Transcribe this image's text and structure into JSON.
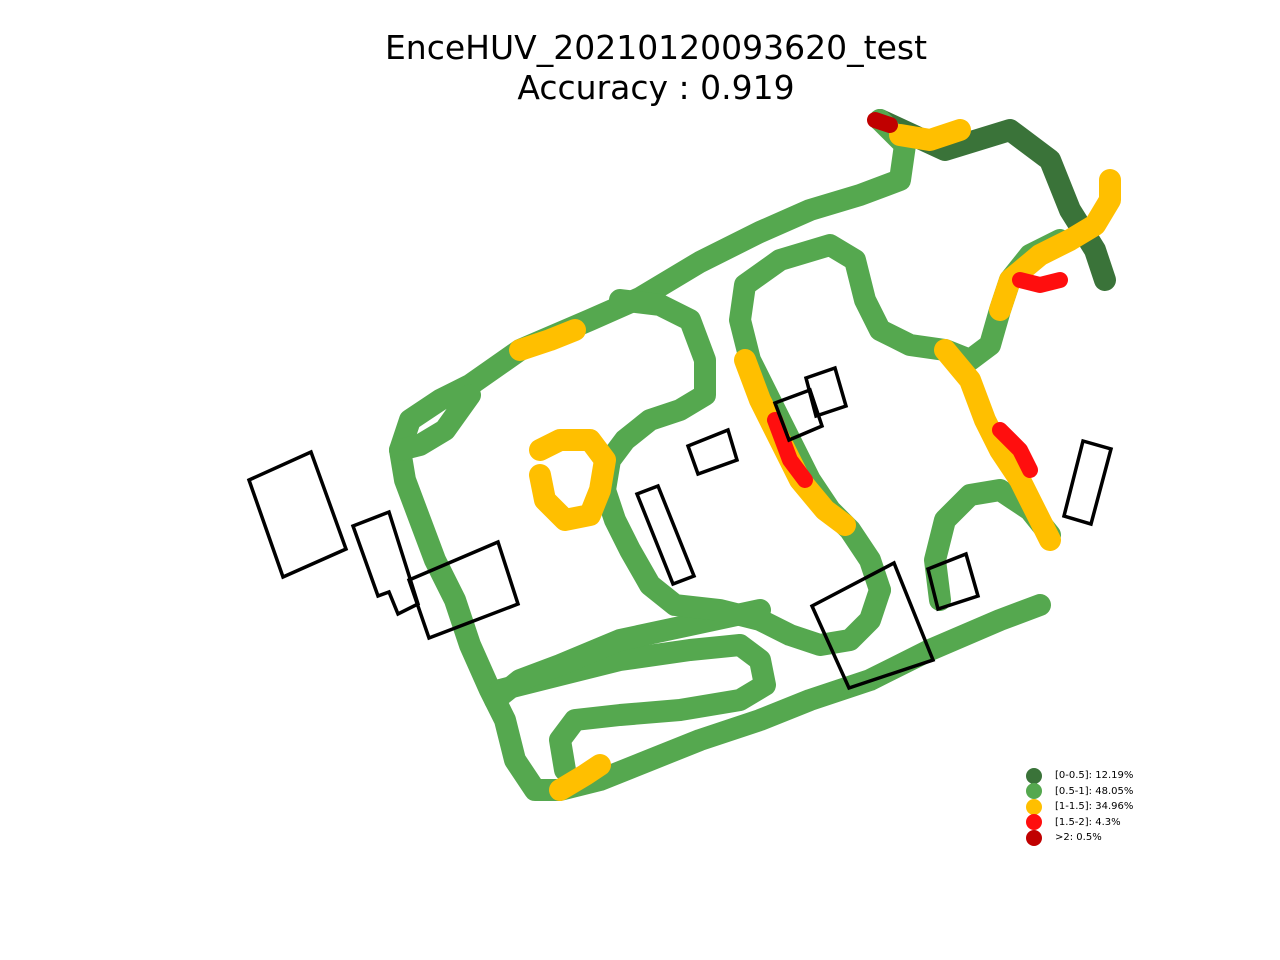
{
  "header": {
    "title": "EnceHUV_20210120093620_test",
    "subtitle": "Accuracy : 0.919"
  },
  "chart_data": {
    "type": "scatter",
    "title": "EnceHUV_20210120093620_test",
    "subtitle": "Accuracy : 0.919",
    "xlabel": "",
    "ylabel": "",
    "grid": false,
    "axes_visible": false,
    "legend_position": "bottom-right",
    "marker": "x",
    "legend": [
      {
        "label": "[0-0.5]: 12.19%",
        "color": "#3a7339",
        "percent": 12.19
      },
      {
        "label": "[0.5-1]: 48.05%",
        "color": "#55a84f",
        "percent": 48.05
      },
      {
        "label": "[1-1.5]: 34.96%",
        "color": "#ffbf00",
        "percent": 34.96
      },
      {
        "label": "[1.5-2]: 4.3%",
        "color": "#ff0e0e",
        "percent": 4.3
      },
      {
        "label": ">2: 0.5%",
        "color": "#c00000",
        "percent": 0.5
      }
    ]
  }
}
